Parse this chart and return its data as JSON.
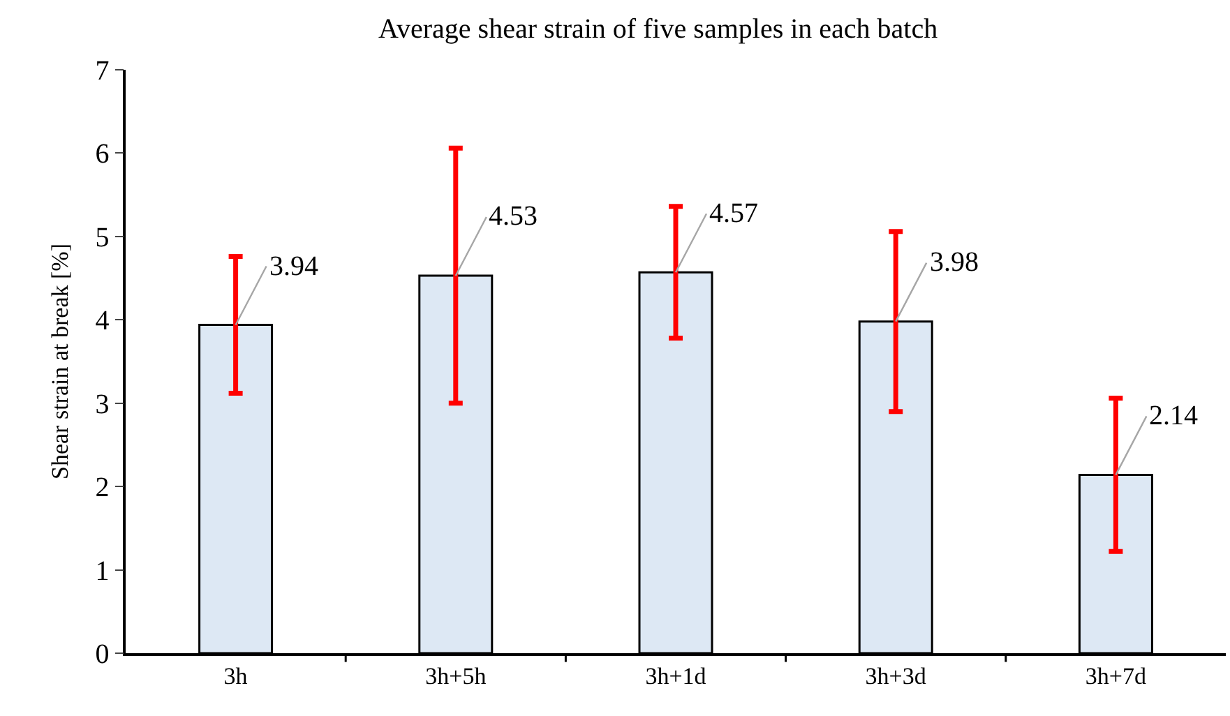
{
  "chart_data": {
    "type": "bar",
    "title": "Average shear strain of five samples in each batch",
    "ylabel": "Shear strain at break [%]",
    "categories": [
      "3h",
      "3h+5h",
      "3h+1d",
      "3h+3d",
      "3h+7d"
    ],
    "values": [
      3.94,
      4.53,
      4.57,
      3.98,
      2.14
    ],
    "errors": [
      0.82,
      1.53,
      0.79,
      1.08,
      0.92
    ],
    "color": "#dde8f4",
    "ylim": [
      0,
      7
    ],
    "yticks": [
      0,
      1,
      2,
      3,
      4,
      5,
      6,
      7
    ],
    "data_labels": true
  }
}
